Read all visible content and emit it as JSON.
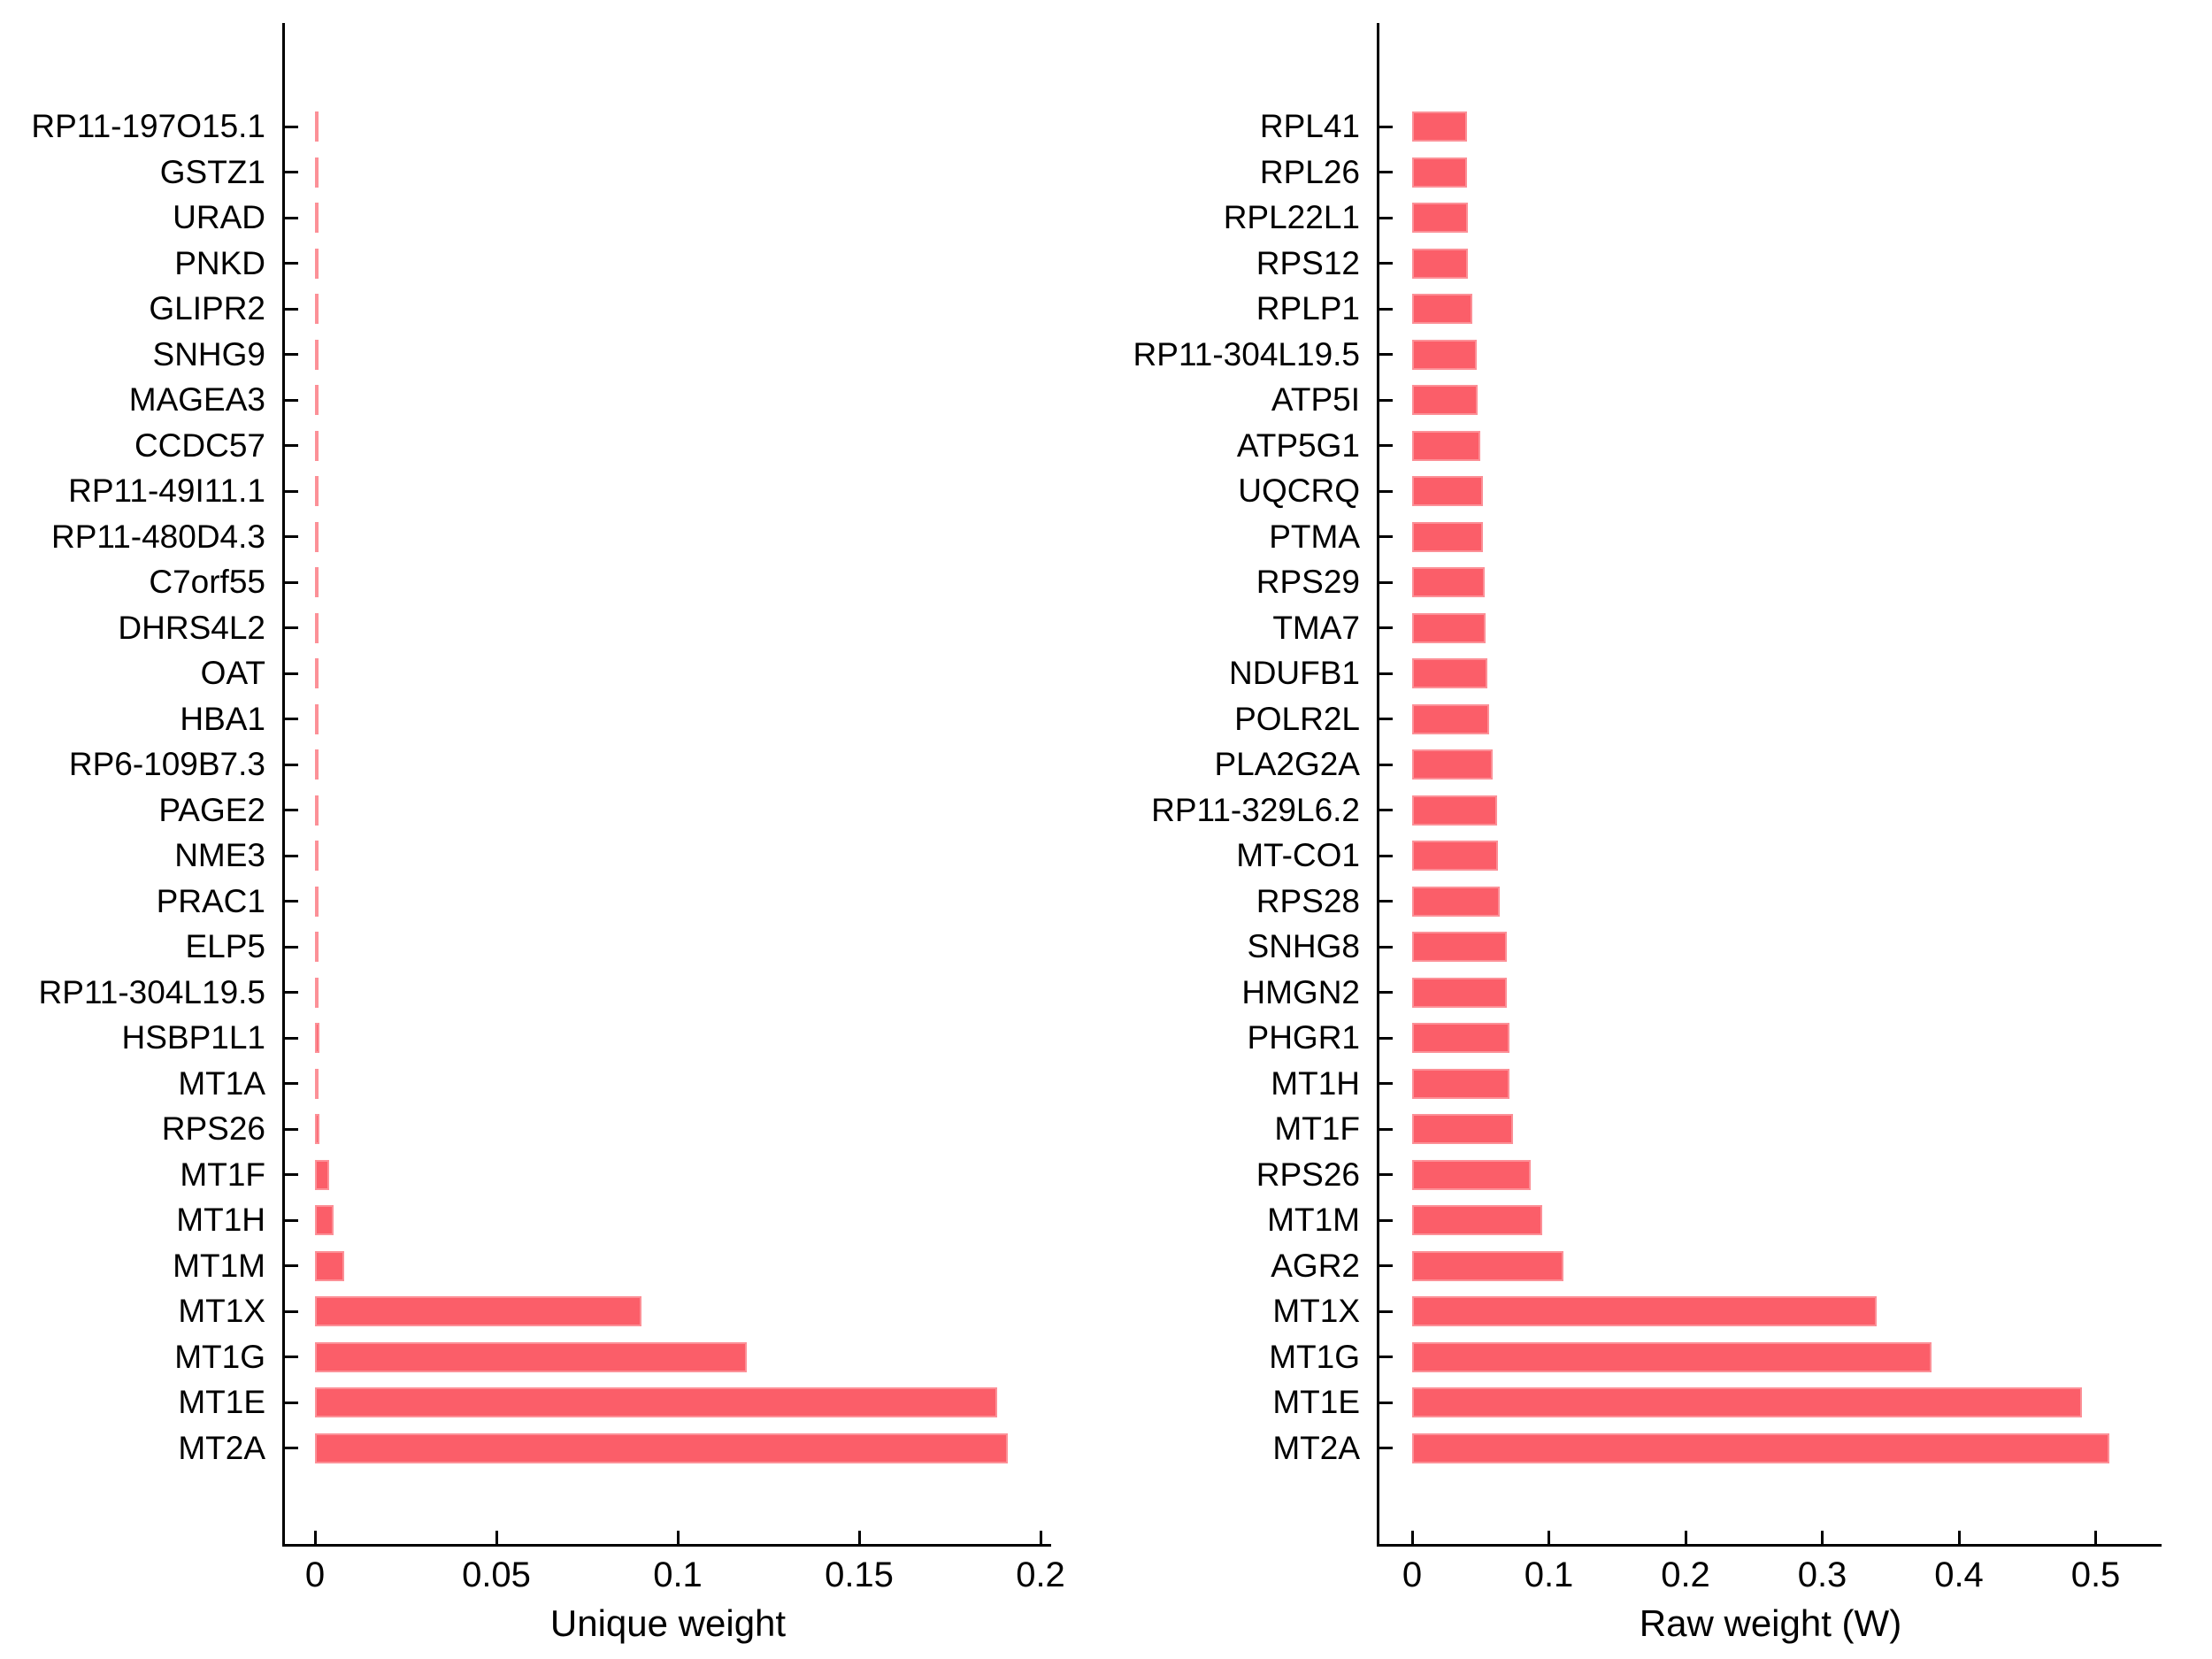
{
  "chart_data": [
    {
      "type": "bar",
      "orientation": "horizontal",
      "xlabel": "Unique weight",
      "xticks": [
        0,
        0.05,
        0.1,
        0.15,
        0.2
      ],
      "xlim": [
        0,
        0.21
      ],
      "grid": false,
      "bar_color": "#fb5e69",
      "categories": [
        "RP11-197O15.1",
        "GSTZ1",
        "URAD",
        "PNKD",
        "GLIPR2",
        "SNHG9",
        "MAGEA3",
        "CCDC57",
        "RP11-49I11.1",
        "RP11-480D4.3",
        "C7orf55",
        "DHRS4L2",
        "OAT",
        "HBA1",
        "RP6-109B7.3",
        "PAGE2",
        "NME3",
        "PRAC1",
        "ELP5",
        "RP11-304L19.5",
        "HSBP1L1",
        "MT1A",
        "RPS26",
        "MT1F",
        "MT1H",
        "MT1M",
        "MT1X",
        "MT1G",
        "MT1E",
        "MT2A"
      ],
      "values": [
        0.0004,
        0.0004,
        0.0004,
        0.0004,
        0.0005,
        0.0005,
        0.0005,
        0.0005,
        0.0005,
        0.0006,
        0.0006,
        0.0006,
        0.0006,
        0.0007,
        0.0007,
        0.0007,
        0.0008,
        0.0008,
        0.0009,
        0.001,
        0.0012,
        0.0008,
        0.0012,
        0.004,
        0.005,
        0.008,
        0.09,
        0.119,
        0.188,
        0.191
      ]
    },
    {
      "type": "bar",
      "orientation": "horizontal",
      "xlabel": "Raw weight (W)",
      "xticks": [
        0,
        0.1,
        0.2,
        0.3,
        0.4,
        0.5
      ],
      "xlim": [
        0,
        0.55
      ],
      "grid": false,
      "bar_color": "#fb5e69",
      "categories": [
        "RPL41",
        "RPL26",
        "RPL22L1",
        "RPS12",
        "RPLP1",
        "RP11-304L19.5",
        "ATP5I",
        "ATP5G1",
        "UQCRQ",
        "PTMA",
        "RPS29",
        "TMA7",
        "NDUFB1",
        "POLR2L",
        "PLA2G2A",
        "RP11-329L6.2",
        "MT-CO1",
        "RPS28",
        "SNHG8",
        "HMGN2",
        "PHGR1",
        "MT1H",
        "MT1F",
        "RPS26",
        "MT1M",
        "AGR2",
        "MT1X",
        "MT1G",
        "MT1E",
        "MT2A"
      ],
      "values": [
        0.04,
        0.04,
        0.041,
        0.041,
        0.044,
        0.047,
        0.048,
        0.05,
        0.052,
        0.052,
        0.053,
        0.054,
        0.055,
        0.056,
        0.059,
        0.062,
        0.063,
        0.064,
        0.069,
        0.069,
        0.071,
        0.071,
        0.074,
        0.087,
        0.095,
        0.111,
        0.34,
        0.38,
        0.49,
        0.51
      ]
    }
  ]
}
